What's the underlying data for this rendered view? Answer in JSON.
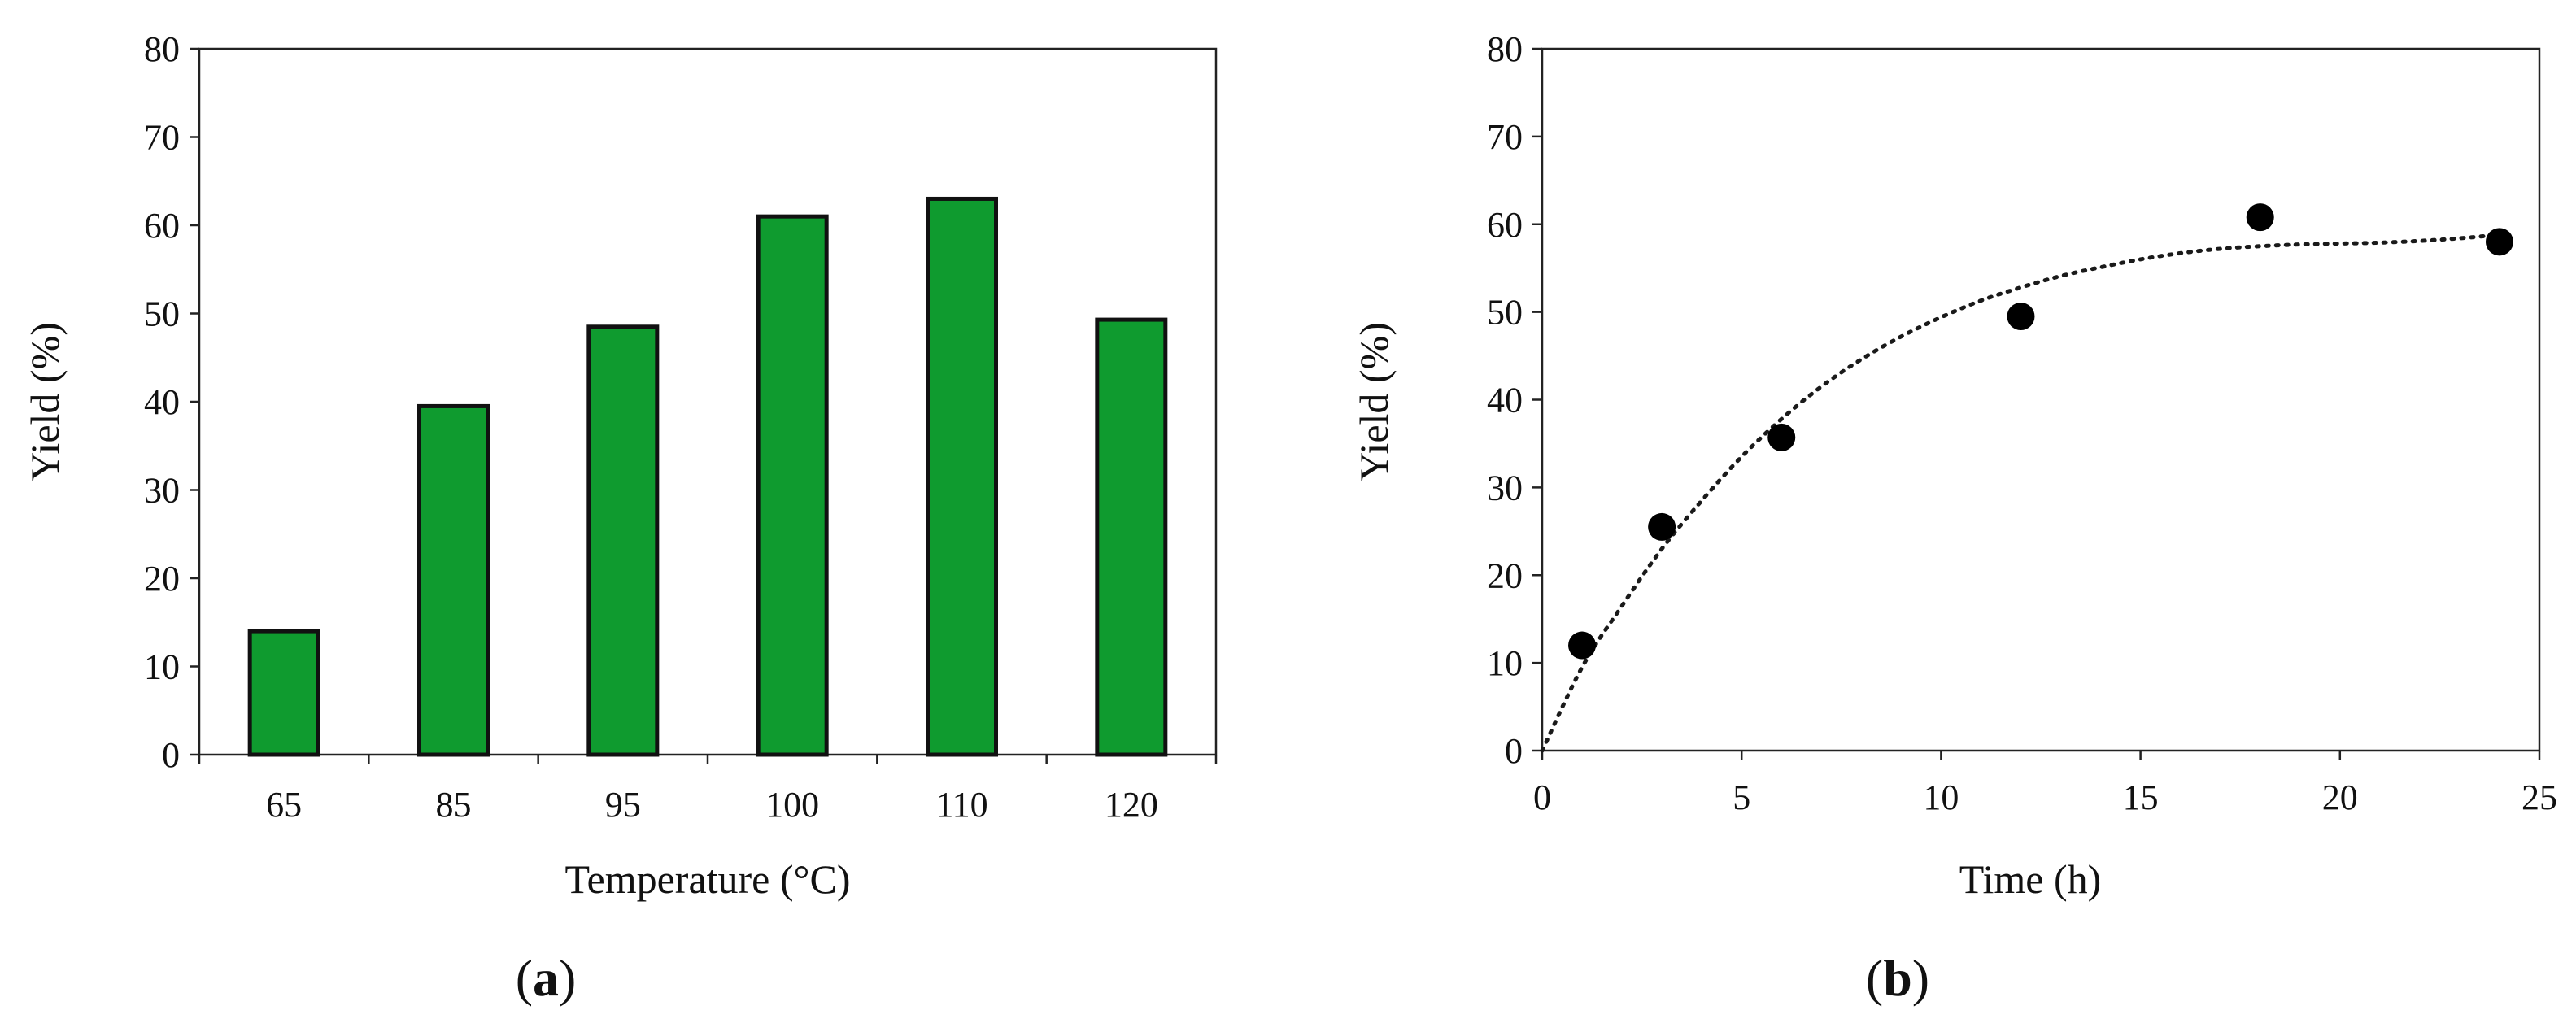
{
  "chart_data": [
    {
      "panel_label": "(a)",
      "type": "bar",
      "categories": [
        "65",
        "85",
        "95",
        "100",
        "110",
        "120"
      ],
      "values": [
        14,
        39.5,
        48.5,
        61,
        63,
        49.3
      ],
      "xlabel": "Temperature (°C)",
      "ylabel": "Yield (%)",
      "ylim": [
        0,
        80
      ],
      "yticks": [
        0,
        10,
        20,
        30,
        40,
        50,
        60,
        70,
        80
      ],
      "bar_color": "#0f9b2f",
      "grid": false
    },
    {
      "panel_label": "(b)",
      "type": "scatter",
      "points": [
        {
          "x": 1,
          "y": 12
        },
        {
          "x": 3,
          "y": 25.5
        },
        {
          "x": 6,
          "y": 35.7
        },
        {
          "x": 12,
          "y": 49.5
        },
        {
          "x": 18,
          "y": 60.8
        },
        {
          "x": 24,
          "y": 58
        }
      ],
      "trendline": {
        "style": "dotted",
        "x": [
          0,
          1,
          2,
          3,
          4,
          5,
          6,
          7,
          8,
          9,
          10,
          11,
          12,
          13,
          14,
          15,
          16,
          17,
          18,
          19,
          20,
          21,
          22,
          23,
          24
        ],
        "y": [
          0,
          9.5,
          16.5,
          23,
          28.5,
          33.5,
          37.8,
          41.5,
          44.6,
          47.2,
          49.4,
          51.3,
          52.8,
          54.1,
          55.1,
          56,
          56.7,
          57.2,
          57.5,
          57.7,
          57.8,
          57.9,
          58.1,
          58.4,
          58.8
        ]
      },
      "xlabel": "Time (h)",
      "ylabel": "Yield (%)",
      "xlim": [
        0,
        25
      ],
      "ylim": [
        0,
        80
      ],
      "xticks": [
        0,
        5,
        10,
        15,
        20,
        25
      ],
      "yticks": [
        0,
        10,
        20,
        30,
        40,
        50,
        60,
        70,
        80
      ],
      "marker_color": "#000000",
      "grid": false
    }
  ]
}
